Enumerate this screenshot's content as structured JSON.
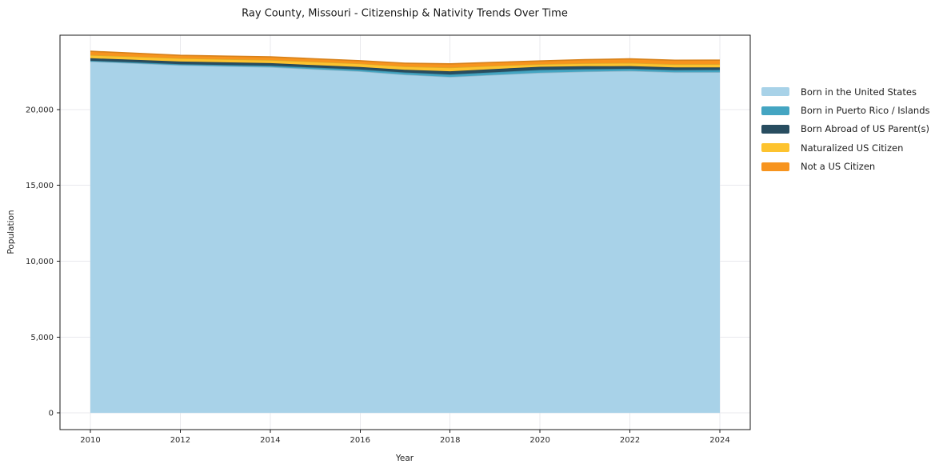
{
  "title": "Ray County, Missouri - Citizenship & Nativity Trends Over Time",
  "axes": {
    "x_label": "Year",
    "y_label": "Population",
    "x_ticks": [
      2010,
      2012,
      2014,
      2016,
      2018,
      2020,
      2022,
      2024
    ],
    "y_ticks": [
      0,
      5000,
      10000,
      15000,
      20000
    ],
    "y_tick_labels": [
      "0",
      "5,000",
      "10,000",
      "15,000",
      "20,000"
    ]
  },
  "chart_data": {
    "type": "area",
    "stacked": true,
    "title": "Ray County, Missouri - Citizenship & Nativity Trends Over Time",
    "xlabel": "Year",
    "ylabel": "Population",
    "grid": true,
    "legend_position": "right",
    "x_range": [
      2009.324,
      2024.676
    ],
    "y_range": [
      -1100,
      24900
    ],
    "x": [
      2010,
      2011,
      2012,
      2013,
      2014,
      2015,
      2016,
      2017,
      2018,
      2019,
      2020,
      2021,
      2022,
      2023,
      2024
    ],
    "series": [
      {
        "name": "Born in the United States",
        "color": "#a8d2e8",
        "values": [
          23170,
          23050,
          22920,
          22860,
          22800,
          22660,
          22520,
          22300,
          22150,
          22290,
          22425,
          22500,
          22550,
          22460,
          22465
        ]
      },
      {
        "name": "Born in Puerto Rico / Islands",
        "color": "#44a5c2",
        "values": [
          50,
          60,
          70,
          80,
          90,
          105,
          120,
          140,
          160,
          175,
          185,
          160,
          135,
          140,
          145
        ]
      },
      {
        "name": "Born Abroad of US Parent(s)",
        "color": "#284d60",
        "values": [
          160,
          168,
          175,
          172,
          170,
          165,
          160,
          180,
          210,
          208,
          205,
          192,
          180,
          175,
          170
        ]
      },
      {
        "name": "Naturalized US Citizen",
        "color": "#fdc32f",
        "values": [
          210,
          212,
          215,
          212,
          210,
          220,
          230,
          220,
          250,
          215,
          175,
          195,
          210,
          210,
          210
        ]
      },
      {
        "name": "Not a US Citizen",
        "color": "#f7941e",
        "values": [
          250,
          220,
          190,
          195,
          200,
          195,
          190,
          215,
          240,
          225,
          210,
          240,
          265,
          265,
          265
        ]
      }
    ]
  }
}
